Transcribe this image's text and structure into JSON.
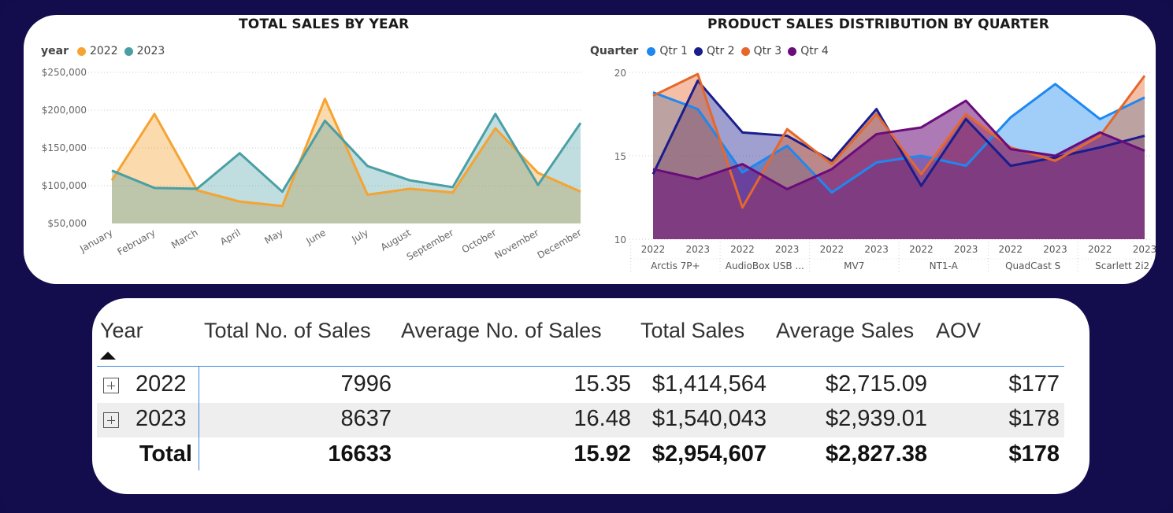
{
  "colors": {
    "y2022": "#f5a332",
    "y2023": "#4a9fa5",
    "q1": "#1e88f0",
    "q2": "#1a1d8c",
    "q3": "#e5672c",
    "q4": "#6a0c7a",
    "accent": "#3b8be0",
    "background": "#140d4d"
  },
  "chart_data": [
    {
      "type": "area",
      "title": "TOTAL SALES BY YEAR",
      "legend_title": "year",
      "legend_position": "top-left",
      "categories": [
        "January",
        "February",
        "March",
        "April",
        "May",
        "June",
        "July",
        "August",
        "September",
        "October",
        "November",
        "December"
      ],
      "yticks": [
        "$250,000",
        "$200,000",
        "$150,000",
        "$100,000",
        "$50,000"
      ],
      "ylim": [
        50000,
        250000
      ],
      "grid": true,
      "series": [
        {
          "name": "2022",
          "values": [
            107000,
            195000,
            94000,
            79000,
            73000,
            215000,
            88000,
            96000,
            91000,
            176000,
            117000,
            92000
          ]
        },
        {
          "name": "2023",
          "values": [
            120000,
            97000,
            96000,
            143000,
            92000,
            186000,
            126000,
            107000,
            98000,
            195000,
            101000,
            183000
          ]
        }
      ]
    },
    {
      "type": "area",
      "title": "PRODUCT SALES DISTRIBUTION BY QUARTER",
      "legend_title": "Quarter",
      "legend_position": "top-left",
      "x": [
        "2022",
        "2023",
        "2022",
        "2023",
        "2022",
        "2023",
        "2022",
        "2023",
        "2022",
        "2023",
        "2022",
        "2023"
      ],
      "groups": [
        "Arctis 7P+",
        "AudioBox USB ...",
        "MV7",
        "NT1-A",
        "QuadCast S",
        "Scarlett 2i2"
      ],
      "yticks": [
        "20",
        "15",
        "10"
      ],
      "ylim": [
        10,
        20
      ],
      "grid": true,
      "series": [
        {
          "name": "Qtr 1",
          "values": [
            18.8,
            17.8,
            14.0,
            15.6,
            12.8,
            14.6,
            15.0,
            14.4,
            17.3,
            19.3,
            17.2,
            18.5
          ]
        },
        {
          "name": "Qtr 2",
          "values": [
            13.9,
            19.5,
            16.4,
            16.2,
            14.7,
            17.8,
            13.2,
            17.2,
            14.4,
            14.9,
            15.5,
            16.2
          ]
        },
        {
          "name": "Qtr 3",
          "values": [
            18.6,
            19.9,
            11.9,
            16.6,
            14.5,
            17.5,
            13.9,
            17.5,
            15.5,
            14.7,
            16.2,
            19.8
          ]
        },
        {
          "name": "Qtr 4",
          "values": [
            14.2,
            13.6,
            14.5,
            13.0,
            14.2,
            16.3,
            16.7,
            18.3,
            15.4,
            15.0,
            16.4,
            15.3
          ]
        }
      ]
    }
  ],
  "table": {
    "headers": [
      "Year",
      "Total No. of Sales",
      "Average No. of Sales",
      "Total Sales",
      "Average Sales",
      "AOV"
    ],
    "rows": [
      {
        "year": "2022",
        "total_no": "7996",
        "avg_no": "15.35",
        "total_sales": "$1,414,564",
        "avg_sales": "$2,715.09",
        "aov": "$177"
      },
      {
        "year": "2023",
        "total_no": "8637",
        "avg_no": "16.48",
        "total_sales": "$1,540,043",
        "avg_sales": "$2,939.01",
        "aov": "$178"
      }
    ],
    "total": {
      "label": "Total",
      "total_no": "16633",
      "avg_no": "15.92",
      "total_sales": "$2,954,607",
      "avg_sales": "$2,827.38",
      "aov": "$178"
    }
  }
}
